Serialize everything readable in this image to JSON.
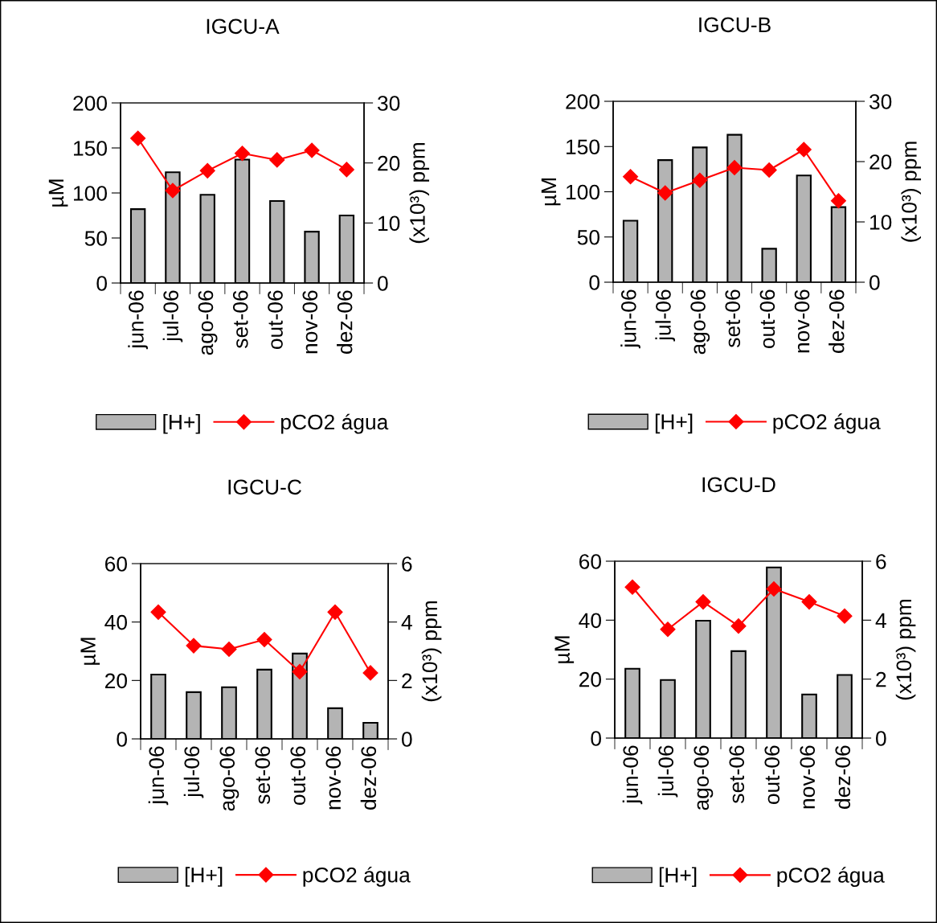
{
  "chart_data": [
    {
      "type": "bar",
      "title": "IGCU-A",
      "categories": [
        "jun-06",
        "jul-06",
        "ago-06",
        "set-06",
        "out-06",
        "nov-06",
        "dez-06"
      ],
      "ylabel": "µM",
      "y2label": "(x10³) ppm",
      "ylim": [
        0,
        200
      ],
      "yticks": [
        0,
        50,
        100,
        150,
        200
      ],
      "y2lim": [
        0,
        30
      ],
      "y2ticks": [
        0,
        10,
        20,
        30
      ],
      "legend": "bottom",
      "grid": false,
      "series": [
        {
          "name": "[H+]",
          "color": "#b4b4b4",
          "values": [
            82,
            123,
            98,
            137,
            91,
            57,
            75
          ]
        },
        {
          "name": "pCO2 água",
          "type": "line",
          "axis": "y2",
          "color": "#ff0000",
          "marker": "diamond",
          "values": [
            24.1,
            15.4,
            18.7,
            21.6,
            20.5,
            22.1,
            18.9
          ]
        }
      ]
    },
    {
      "type": "bar",
      "title": "IGCU-B",
      "categories": [
        "jun-06",
        "jul-06",
        "ago-06",
        "set-06",
        "out-06",
        "nov-06",
        "dez-06"
      ],
      "ylabel": "µM",
      "y2label": "(x10³) ppm",
      "ylim": [
        0,
        200
      ],
      "yticks": [
        0,
        50,
        100,
        150,
        200
      ],
      "y2lim": [
        0,
        30
      ],
      "y2ticks": [
        0,
        10,
        20,
        30
      ],
      "legend": "bottom",
      "grid": false,
      "series": [
        {
          "name": "[H+]",
          "color": "#b4b4b4",
          "values": [
            68,
            135,
            149,
            163,
            37,
            118,
            83
          ]
        },
        {
          "name": "pCO2 água",
          "type": "line",
          "axis": "y2",
          "color": "#ff0000",
          "marker": "diamond",
          "values": [
            17.5,
            14.8,
            16.9,
            19,
            18.6,
            22,
            13.5
          ]
        }
      ]
    },
    {
      "type": "bar",
      "title": "IGCU-C",
      "categories": [
        "jun-06",
        "jul-06",
        "ago-06",
        "set-06",
        "out-06",
        "nov-06",
        "dez-06"
      ],
      "ylabel": "µM",
      "y2label": "(x10³) ppm",
      "ylim": [
        0,
        60
      ],
      "yticks": [
        0,
        20,
        40,
        60
      ],
      "y2lim": [
        0,
        6
      ],
      "y2ticks": [
        0,
        2,
        4,
        6
      ],
      "legend": "bottom",
      "grid": false,
      "series": [
        {
          "name": "[H+]",
          "color": "#b4b4b4",
          "values": [
            22,
            16,
            17.7,
            23.7,
            29.2,
            10.5,
            5.5
          ]
        },
        {
          "name": "pCO2 água",
          "type": "line",
          "axis": "y2",
          "color": "#ff0000",
          "marker": "diamond",
          "values": [
            4.34,
            3.19,
            3.07,
            3.4,
            2.3,
            4.34,
            2.26
          ]
        }
      ]
    },
    {
      "type": "bar",
      "title": "IGCU-D",
      "categories": [
        "jun-06",
        "jul-06",
        "ago-06",
        "set-06",
        "out-06",
        "nov-06",
        "dez-06"
      ],
      "ylabel": "µM",
      "y2label": "(x10³) ppm",
      "ylim": [
        0,
        60
      ],
      "yticks": [
        0,
        20,
        40,
        60
      ],
      "y2lim": [
        0,
        6
      ],
      "y2ticks": [
        0,
        2,
        4,
        6
      ],
      "legend": "bottom",
      "grid": false,
      "series": [
        {
          "name": "[H+]",
          "color": "#b4b4b4",
          "values": [
            23.5,
            19.7,
            39.8,
            29.5,
            57.9,
            14.8,
            21.4
          ]
        },
        {
          "name": "pCO2 água",
          "type": "line",
          "axis": "y2",
          "color": "#ff0000",
          "marker": "diamond",
          "values": [
            5.12,
            3.69,
            4.62,
            3.8,
            5.06,
            4.62,
            4.14
          ]
        }
      ]
    }
  ]
}
